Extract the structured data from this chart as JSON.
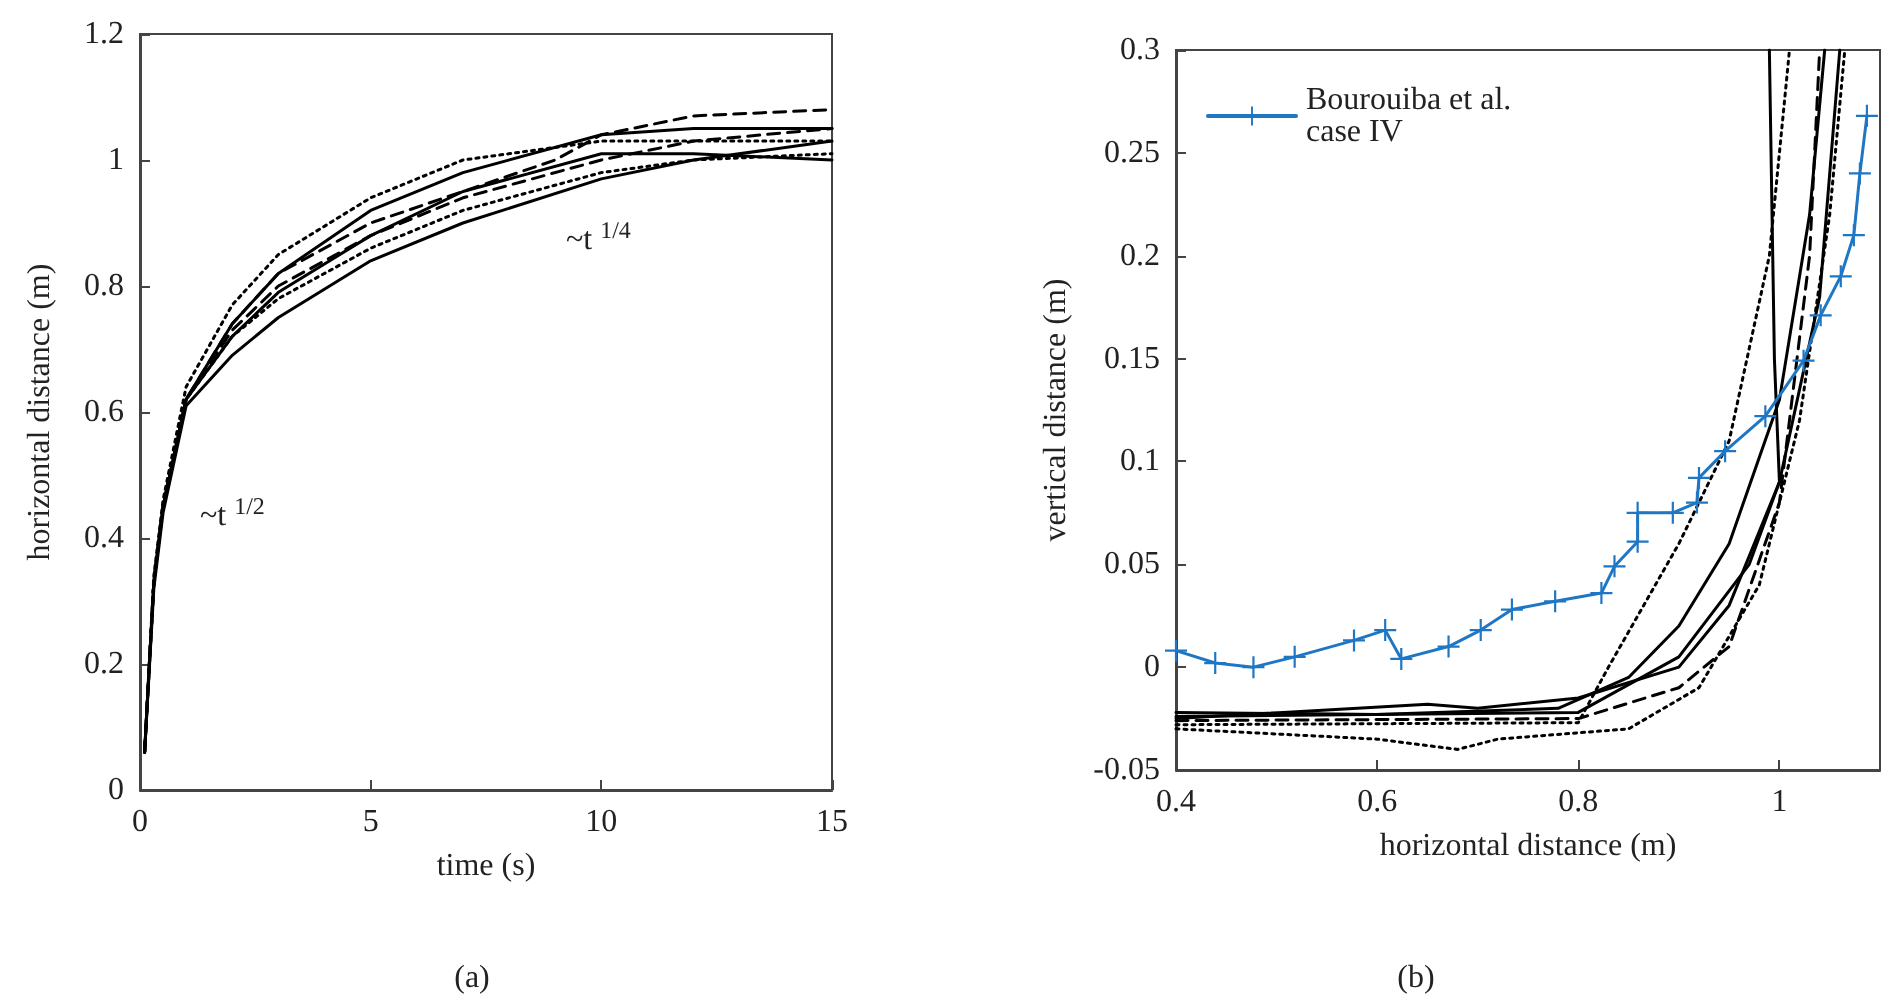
{
  "chart_data": [
    {
      "type": "line",
      "xlabel": "time (s)",
      "ylabel": "horizontal distance (m)",
      "xlim": [
        0,
        15
      ],
      "ylim": [
        0,
        1.2
      ],
      "xticks": [
        0,
        5,
        10,
        15
      ],
      "yticks": [
        0,
        0.2,
        0.4,
        0.6,
        0.8,
        1,
        1.2
      ],
      "grid": false,
      "legend": false,
      "marker": "none",
      "annotations": [
        "~t $^{1/2}$",
        "~t $^{1/4}$",
        "(a)"
      ],
      "series": [
        {
          "color": "#000000",
          "line_style": "solid",
          "x": [
            0.1,
            0.3,
            0.5,
            1,
            2,
            3,
            5,
            7,
            10,
            12,
            15
          ],
          "values": [
            0.06,
            0.33,
            0.45,
            0.62,
            0.74,
            0.82,
            0.92,
            0.98,
            1.04,
            1.05,
            1.05
          ]
        },
        {
          "color": "#000000",
          "line_style": "dotted",
          "x": [
            0.1,
            0.3,
            0.5,
            1,
            2,
            3,
            5,
            7,
            10,
            12,
            15
          ],
          "values": [
            0.06,
            0.34,
            0.46,
            0.64,
            0.77,
            0.85,
            0.94,
            1.0,
            1.03,
            1.03,
            1.03
          ]
        },
        {
          "color": "#000000",
          "line_style": "dashed",
          "x": [
            0.1,
            0.3,
            0.5,
            1,
            2,
            3,
            5,
            7,
            9,
            10,
            12,
            15
          ],
          "values": [
            0.06,
            0.33,
            0.45,
            0.62,
            0.74,
            0.82,
            0.9,
            0.95,
            1.0,
            1.04,
            1.07,
            1.08
          ]
        },
        {
          "color": "#000000",
          "line_style": "dashed",
          "x": [
            0.1,
            0.3,
            0.5,
            1,
            2,
            3,
            5,
            7,
            10,
            12,
            15
          ],
          "values": [
            0.06,
            0.33,
            0.45,
            0.62,
            0.73,
            0.8,
            0.88,
            0.94,
            1.0,
            1.03,
            1.05
          ]
        },
        {
          "color": "#000000",
          "line_style": "dotted",
          "x": [
            0.1,
            0.3,
            0.5,
            1,
            2,
            3,
            5,
            7,
            10,
            12,
            15
          ],
          "values": [
            0.06,
            0.33,
            0.45,
            0.62,
            0.72,
            0.78,
            0.86,
            0.92,
            0.98,
            1.0,
            1.01
          ]
        },
        {
          "color": "#000000",
          "line_style": "solid",
          "x": [
            0.1,
            0.3,
            0.5,
            1,
            2,
            3,
            5,
            7,
            10,
            12,
            15
          ],
          "values": [
            0.06,
            0.32,
            0.44,
            0.61,
            0.69,
            0.75,
            0.84,
            0.9,
            0.97,
            1.0,
            1.03
          ]
        },
        {
          "color": "#000000",
          "line_style": "solid",
          "x": [
            0.1,
            0.3,
            0.5,
            1,
            2,
            3,
            5,
            7,
            10,
            12,
            15
          ],
          "values": [
            0.06,
            0.33,
            0.45,
            0.62,
            0.72,
            0.79,
            0.88,
            0.95,
            1.01,
            1.01,
            1.0
          ]
        }
      ]
    },
    {
      "type": "line",
      "xlabel": "horizontal distance (m)",
      "ylabel": "vertical distance (m)",
      "xlim": [
        0.4,
        1.1
      ],
      "ylim": [
        -0.05,
        0.3
      ],
      "xticks": [
        0.4,
        0.6,
        0.8,
        1
      ],
      "yticks": [
        -0.05,
        0,
        0.05,
        0.1,
        0.15,
        0.2,
        0.25,
        0.3
      ],
      "grid": false,
      "legend": "top left",
      "annotations": [
        "(b)"
      ],
      "series": [
        {
          "color": "#000000",
          "line_style": "solid",
          "marker": "none",
          "x": [
            0.4,
            0.6,
            0.78,
            0.85,
            0.9,
            0.95,
            1.0,
            1.03,
            1.045
          ],
          "values": [
            -0.022,
            -0.023,
            -0.02,
            -0.005,
            0.02,
            0.06,
            0.13,
            0.22,
            0.3
          ]
        },
        {
          "color": "#000000",
          "line_style": "solid",
          "marker": "none",
          "x": [
            0.4,
            0.65,
            0.7,
            0.8,
            0.9,
            0.95,
            1.0,
            1.04,
            1.06
          ],
          "values": [
            -0.025,
            -0.018,
            -0.02,
            -0.015,
            0.0,
            0.03,
            0.09,
            0.18,
            0.3
          ]
        },
        {
          "color": "#000000",
          "line_style": "dotted",
          "marker": "none",
          "x": [
            0.4,
            0.6,
            0.68,
            0.72,
            0.85,
            0.92,
            0.98,
            1.02,
            1.05,
            1.065
          ],
          "values": [
            -0.03,
            -0.035,
            -0.04,
            -0.035,
            -0.03,
            -0.01,
            0.04,
            0.12,
            0.22,
            0.3
          ]
        },
        {
          "color": "#000000",
          "line_style": "dotted",
          "marker": "none",
          "x": [
            0.4,
            0.8,
            0.83,
            0.9,
            0.95,
            0.99,
            1.01
          ],
          "values": [
            -0.028,
            -0.027,
            0.0,
            0.06,
            0.11,
            0.2,
            0.3
          ]
        },
        {
          "color": "#000000",
          "line_style": "dashed",
          "marker": "none",
          "x": [
            0.4,
            0.8,
            0.9,
            0.95,
            1.0,
            1.03,
            1.04
          ],
          "values": [
            -0.026,
            -0.025,
            -0.01,
            0.01,
            0.08,
            0.2,
            0.3
          ]
        },
        {
          "color": "#000000",
          "line_style": "solid",
          "marker": "none",
          "x": [
            0.4,
            0.8,
            0.9,
            0.97,
            1.0,
            0.995,
            0.99
          ],
          "values": [
            -0.024,
            -0.022,
            0.005,
            0.05,
            0.09,
            0.15,
            0.3
          ]
        },
        {
          "name": "Bourouiba et al. case IV",
          "color": "#1f77c4",
          "line_style": "solid",
          "marker": "cross",
          "x": [
            0.4,
            0.439,
            0.477,
            0.518,
            0.577,
            0.608,
            0.624,
            0.671,
            0.703,
            0.734,
            0.777,
            0.823,
            0.836,
            0.859,
            0.859,
            0.894,
            0.918,
            0.92,
            0.946,
            0.986,
            1.024,
            1.041,
            1.061,
            1.074,
            1.08,
            1.087
          ],
          "values": [
            0.008,
            0.002,
            0.0,
            0.005,
            0.013,
            0.018,
            0.004,
            0.01,
            0.018,
            0.028,
            0.032,
            0.036,
            0.049,
            0.061,
            0.075,
            0.075,
            0.08,
            0.092,
            0.105,
            0.122,
            0.149,
            0.171,
            0.19,
            0.21,
            0.24,
            0.268
          ]
        }
      ]
    }
  ]
}
